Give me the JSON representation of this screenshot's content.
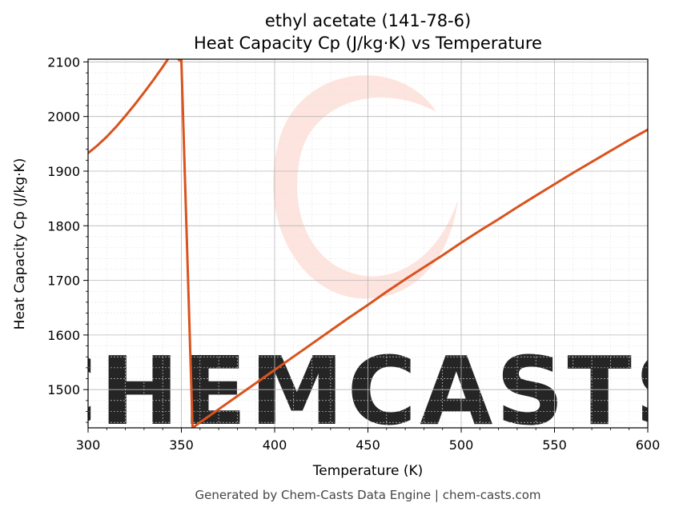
{
  "chart_data": {
    "type": "line",
    "title_line1": "ethyl acetate (141-78-6)",
    "title_line2": "Heat Capacity Cp (J/kg·K) vs Temperature",
    "xlabel": "Temperature (K)",
    "ylabel": "Heat Capacity Cp (J/kg·K)",
    "xlim": [
      300,
      600
    ],
    "ylim": [
      1430,
      2105
    ],
    "xticks": [
      300,
      350,
      400,
      450,
      500,
      550,
      600
    ],
    "yticks": [
      1500,
      1600,
      1700,
      1800,
      1900,
      2000,
      2100
    ],
    "grid": true,
    "line_color": "#d9531e",
    "series": [
      {
        "x": [
          300,
          305,
          310,
          315,
          320,
          325,
          330,
          335,
          340,
          345,
          349,
          350,
          356,
          360,
          370,
          380,
          390,
          400,
          410,
          420,
          430,
          440,
          450,
          460,
          470,
          480,
          490,
          500,
          510,
          520,
          530,
          540,
          550,
          560,
          570,
          580,
          590,
          600
        ],
        "y": [
          1933,
          1947,
          1963,
          1981,
          2001,
          2022,
          2044,
          2067,
          2091,
          2116,
          2103,
          2103,
          1430,
          1440,
          1464,
          1488,
          1512,
          1536,
          1560,
          1584,
          1608,
          1632,
          1655,
          1679,
          1702,
          1724,
          1746,
          1769,
          1791,
          1812,
          1834,
          1855,
          1876,
          1897,
          1917,
          1937,
          1957,
          1976
        ]
      }
    ]
  },
  "watermark": {
    "text": "CHEMCASTS",
    "color": "#fbd5cc"
  },
  "footer": "Generated by Chem-Casts Data Engine | chem-casts.com"
}
